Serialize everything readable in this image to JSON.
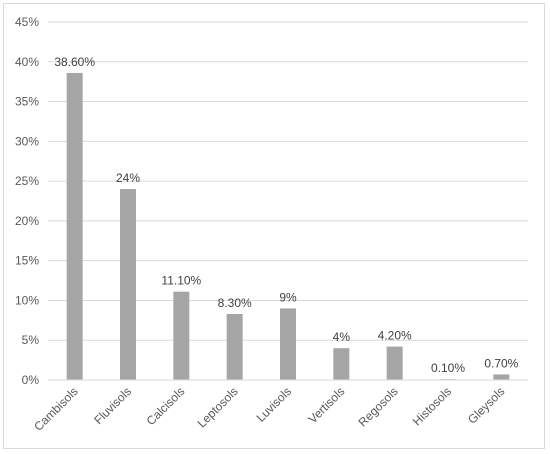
{
  "chart_data": {
    "type": "bar",
    "title": "",
    "xlabel": "",
    "ylabel": "",
    "categories": [
      "Cambisols",
      "Fluvisols",
      "Calcisols",
      "Leptosols",
      "Luvisols",
      "Vertisols",
      "Regosols",
      "Histosols",
      "Gleysols"
    ],
    "values": [
      38.6,
      24,
      11.1,
      8.3,
      9,
      4,
      4.2,
      0.1,
      0.7
    ],
    "data_labels": [
      "38.60%",
      "24%",
      "11.10%",
      "8.30%",
      "9%",
      "4%",
      "4.20%",
      "0.10%",
      "0.70%"
    ],
    "ylim": [
      0,
      45
    ],
    "y_ticks": [
      0,
      5,
      10,
      15,
      20,
      25,
      30,
      35,
      40,
      45
    ],
    "y_tick_labels": [
      "0%",
      "5%",
      "10%",
      "15%",
      "20%",
      "25%",
      "30%",
      "35%",
      "40%",
      "45%"
    ],
    "grid": true,
    "legend": "none",
    "bar_color": "#a5a5a5",
    "grid_color": "#d9d9d9"
  }
}
